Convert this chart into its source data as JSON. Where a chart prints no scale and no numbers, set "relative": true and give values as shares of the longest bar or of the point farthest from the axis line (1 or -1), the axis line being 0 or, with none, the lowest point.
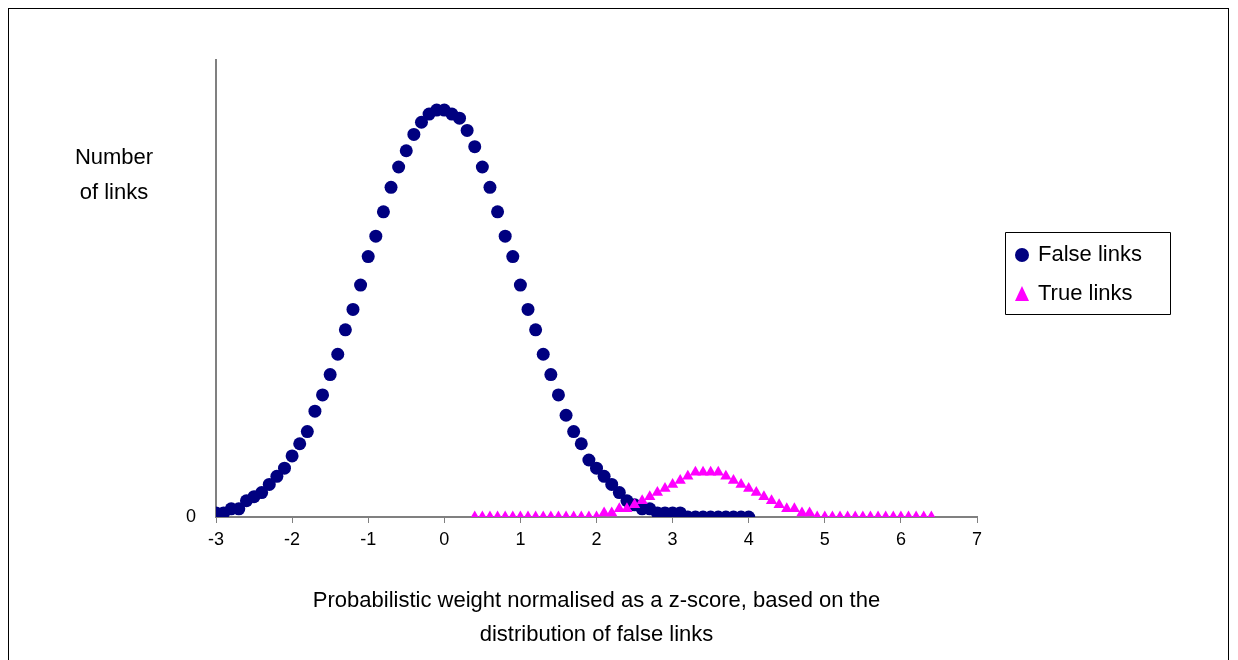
{
  "chart_data": {
    "type": "scatter",
    "relative": true,
    "xlabel": "Probabilistic weight normalised as a z-score, based on the distribution of false links",
    "ylabel": "Number of links",
    "xlim": [
      -3,
      7
    ],
    "xticks": [
      -3,
      -2,
      -1,
      0,
      1,
      2,
      3,
      4,
      5,
      6,
      7
    ],
    "annotations": [
      "0"
    ],
    "grid": false,
    "legend": "right",
    "series": [
      {
        "name": "False links",
        "color": "#000080",
        "marker": "circle",
        "x": [
          -3,
          -2.9,
          -2.8,
          -2.7,
          -2.6,
          -2.5,
          -2.4,
          -2.3,
          -2.2,
          -2.1,
          -2,
          -1.9,
          -1.8,
          -1.7,
          -1.6,
          -1.5,
          -1.4,
          -1.3,
          -1.2,
          -1.1,
          -1,
          -0.9,
          -0.8,
          -0.7,
          -0.6,
          -0.5,
          -0.4,
          -0.3,
          -0.2,
          -0.1,
          0,
          0.1,
          0.2,
          0.3,
          0.4,
          0.5,
          0.6,
          0.7,
          0.8,
          0.9,
          1,
          1.1,
          1.2,
          1.3,
          1.4,
          1.5,
          1.6,
          1.7,
          1.8,
          1.9,
          2,
          2.1,
          2.2,
          2.3,
          2.4,
          2.5,
          2.6,
          2.7,
          2.8,
          2.9,
          3,
          3.1,
          3.2,
          3.3,
          3.4,
          3.5,
          3.6,
          3.7,
          3.8,
          3.9,
          4
        ],
        "values": [
          0.01,
          0.01,
          0.02,
          0.02,
          0.04,
          0.05,
          0.06,
          0.08,
          0.1,
          0.12,
          0.15,
          0.18,
          0.21,
          0.26,
          0.3,
          0.35,
          0.4,
          0.46,
          0.51,
          0.57,
          0.64,
          0.69,
          0.75,
          0.81,
          0.86,
          0.9,
          0.94,
          0.97,
          0.99,
          1,
          1,
          0.99,
          0.98,
          0.95,
          0.91,
          0.86,
          0.81,
          0.75,
          0.69,
          0.64,
          0.57,
          0.51,
          0.46,
          0.4,
          0.35,
          0.3,
          0.25,
          0.21,
          0.18,
          0.14,
          0.12,
          0.1,
          0.08,
          0.06,
          0.04,
          0.03,
          0.02,
          0.02,
          0.01,
          0.01,
          0.01,
          0.01,
          0,
          0,
          0,
          0,
          0,
          0,
          0,
          0,
          0
        ]
      },
      {
        "name": "True links",
        "color": "#ff00ff",
        "marker": "triangle",
        "x": [
          0.4,
          0.5,
          0.6,
          0.7,
          0.8,
          0.9,
          1,
          1.1,
          1.2,
          1.3,
          1.4,
          1.5,
          1.6,
          1.7,
          1.8,
          1.9,
          2,
          2.1,
          2.2,
          2.3,
          2.4,
          2.5,
          2.6,
          2.7,
          2.8,
          2.9,
          3,
          3.1,
          3.2,
          3.3,
          3.4,
          3.5,
          3.6,
          3.7,
          3.8,
          3.9,
          4,
          4.1,
          4.2,
          4.3,
          4.4,
          4.5,
          4.6,
          4.7,
          4.8,
          4.9,
          5,
          5.1,
          5.2,
          5.3,
          5.4,
          5.5,
          5.6,
          5.7,
          5.8,
          5.9,
          6,
          6.1,
          6.2,
          6.3,
          6.4
        ],
        "values": [
          0,
          0,
          0,
          0,
          0,
          0,
          0,
          0,
          0,
          0,
          0,
          0,
          0,
          0,
          0,
          0,
          0,
          0.01,
          0.01,
          0.02,
          0.02,
          0.03,
          0.04,
          0.05,
          0.06,
          0.07,
          0.08,
          0.09,
          0.1,
          0.11,
          0.11,
          0.11,
          0.11,
          0.1,
          0.09,
          0.08,
          0.07,
          0.06,
          0.05,
          0.04,
          0.03,
          0.02,
          0.02,
          0.01,
          0.01,
          0,
          0,
          0,
          0,
          0,
          0,
          0,
          0,
          0,
          0,
          0,
          0,
          0,
          0,
          0,
          0
        ]
      }
    ]
  }
}
